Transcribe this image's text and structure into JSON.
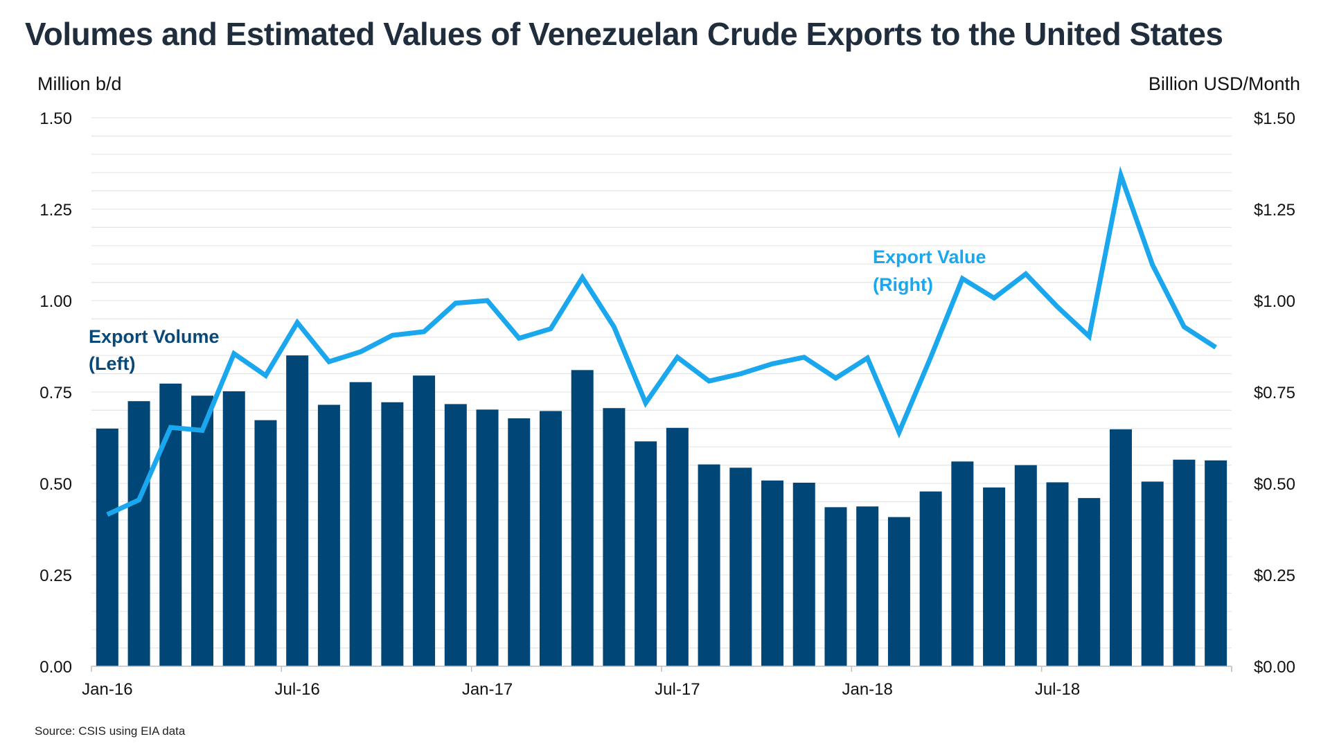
{
  "chart_data": {
    "type": "bar+line",
    "title": "Volumes and Estimated Values of Venezuelan Crude Exports to the United States",
    "ylabel_left": "Million b/d",
    "ylabel_right": "Billion USD/Month",
    "ylim_left": [
      0,
      1.5
    ],
    "ylim_right": [
      0,
      1.5
    ],
    "yticks_left": [
      "0.00",
      "0.25",
      "0.50",
      "0.75",
      "1.00",
      "1.25",
      "1.50"
    ],
    "yticks_right": [
      "$0.00",
      "$0.25",
      "$0.50",
      "$0.75",
      "$1.00",
      "$1.25",
      "$1.50"
    ],
    "ytick_values": [
      0,
      0.25,
      0.5,
      0.75,
      1.0,
      1.25,
      1.5
    ],
    "grid": true,
    "x_tick_labels": [
      {
        "index": 0,
        "label": "Jan-16"
      },
      {
        "index": 6,
        "label": "Jul-16"
      },
      {
        "index": 12,
        "label": "Jan-17"
      },
      {
        "index": 18,
        "label": "Jul-17"
      },
      {
        "index": 24,
        "label": "Jan-18"
      },
      {
        "index": 30,
        "label": "Jul-18"
      }
    ],
    "categories": [
      "Jan-16",
      "Feb-16",
      "Mar-16",
      "Apr-16",
      "May-16",
      "Jun-16",
      "Jul-16",
      "Aug-16",
      "Sep-16",
      "Oct-16",
      "Nov-16",
      "Dec-16",
      "Jan-17",
      "Feb-17",
      "Mar-17",
      "Apr-17",
      "May-17",
      "Jun-17",
      "Jul-17",
      "Aug-17",
      "Sep-17",
      "Oct-17",
      "Nov-17",
      "Dec-17",
      "Jan-18",
      "Feb-18",
      "Mar-18",
      "Apr-18",
      "May-18",
      "Jun-18",
      "Jul-18",
      "Aug-18",
      "Sep-18",
      "Oct-18",
      "Nov-18",
      "Dec-18"
    ],
    "series": [
      {
        "name": "Export Volume",
        "axis": "left",
        "kind": "bar",
        "color": "#004677",
        "values": [
          0.65,
          0.725,
          0.773,
          0.74,
          0.752,
          0.673,
          0.85,
          0.715,
          0.777,
          0.722,
          0.795,
          0.717,
          0.702,
          0.678,
          0.698,
          0.81,
          0.706,
          0.615,
          0.652,
          0.552,
          0.543,
          0.508,
          0.502,
          0.435,
          0.437,
          0.408,
          0.478,
          0.56,
          0.489,
          0.55,
          0.503,
          0.46,
          0.648,
          0.505,
          0.565,
          0.563
        ]
      },
      {
        "name": "Export Value",
        "axis": "right",
        "kind": "line",
        "color": "#1aa7ee",
        "values": [
          0.415,
          0.455,
          0.653,
          0.645,
          0.855,
          0.795,
          0.94,
          0.833,
          0.86,
          0.905,
          0.915,
          0.993,
          1.0,
          0.897,
          0.923,
          1.063,
          0.928,
          0.72,
          0.845,
          0.78,
          0.8,
          0.827,
          0.845,
          0.788,
          0.843,
          0.64,
          0.845,
          1.06,
          1.007,
          1.073,
          0.983,
          0.902,
          1.343,
          1.098,
          0.928,
          0.872
        ]
      }
    ],
    "annotations": {
      "volume_line1": "Export Volume",
      "volume_line2": "(Left)",
      "value_line1": "Export Value",
      "value_line2": "(Right)"
    },
    "source": "Source: CSIS using EIA data"
  }
}
